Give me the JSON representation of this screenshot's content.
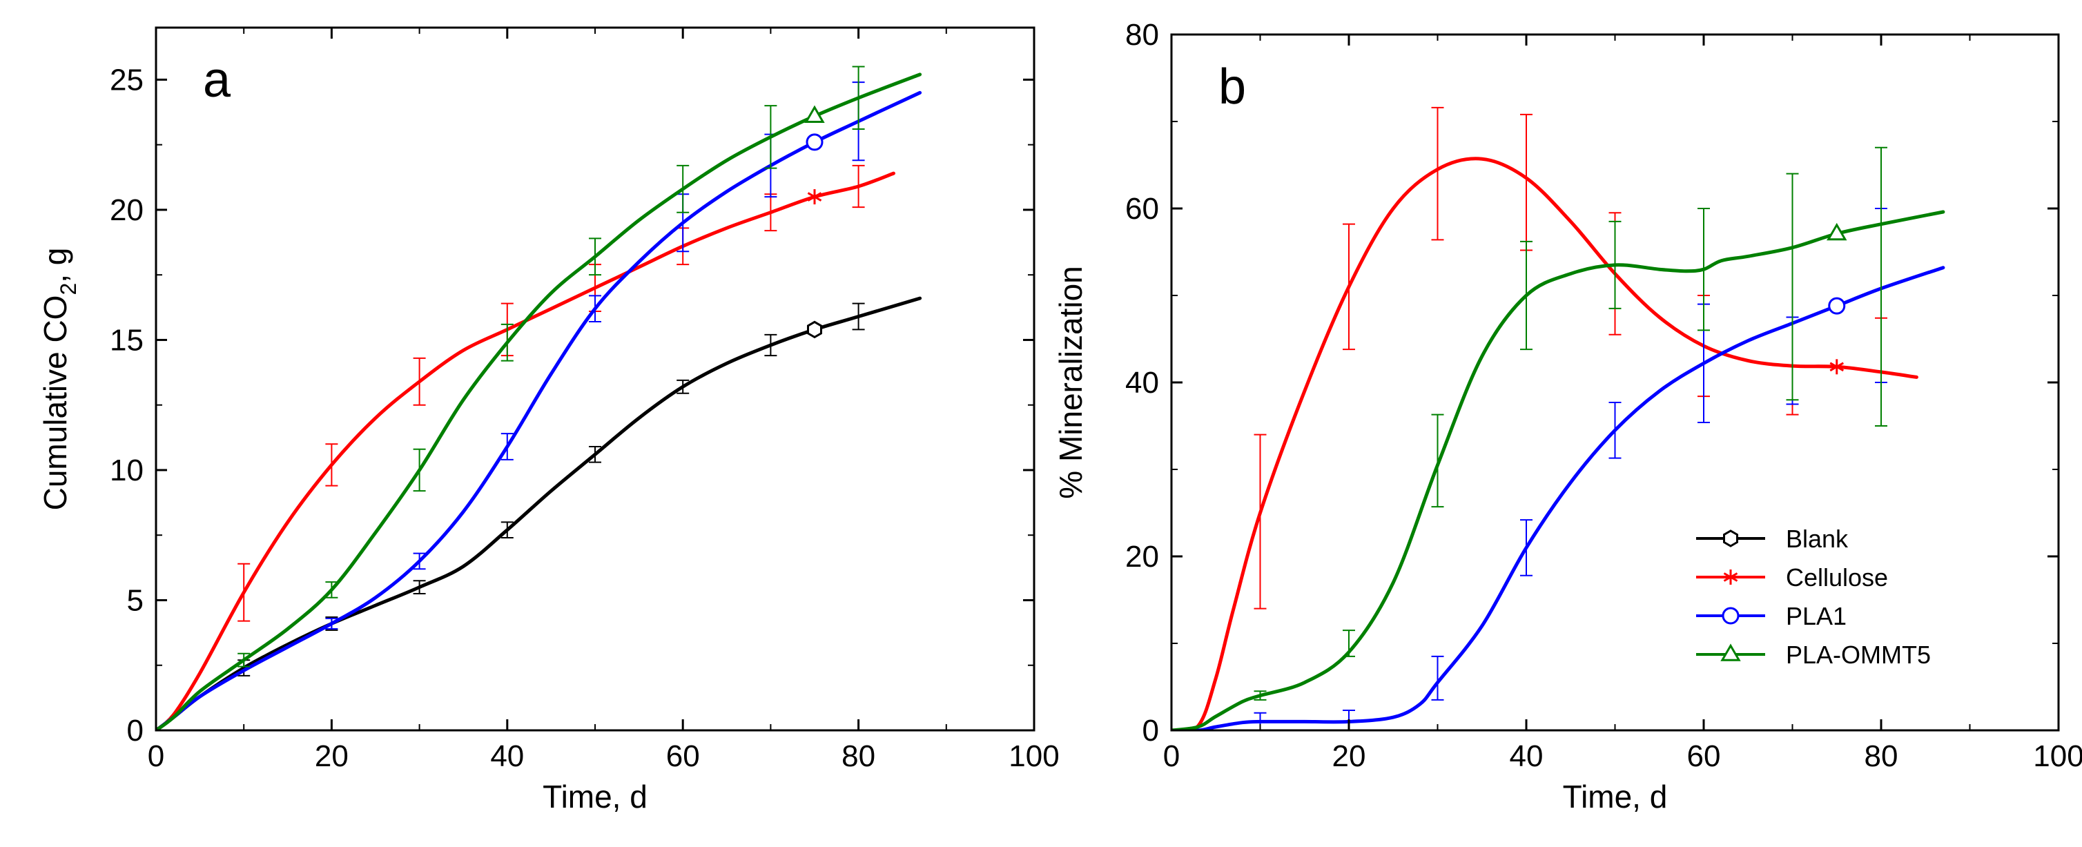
{
  "chart_data": [
    {
      "type": "line",
      "panel_label": "a",
      "xlabel": "Time, d",
      "ylabel": "Cumulative CO",
      "ylabel_sub": "2",
      "ylabel_tail": ", g",
      "xlim": [
        0,
        100
      ],
      "ylim": [
        0,
        27
      ],
      "xticks": [
        0,
        20,
        40,
        60,
        80,
        100
      ],
      "yticks": [
        0,
        5,
        10,
        15,
        20,
        25
      ],
      "grid": false,
      "legend": "none",
      "series": [
        {
          "name": "Blank",
          "color": "#000000",
          "marker": "hexagon",
          "marker_at": [
            75,
            15.4
          ],
          "x": [
            0,
            2,
            5,
            10,
            15,
            20,
            25,
            30,
            35,
            40,
            45,
            50,
            55,
            60,
            65,
            70,
            75,
            80,
            87
          ],
          "y": [
            0,
            0.5,
            1.3,
            2.4,
            3.3,
            4.1,
            4.8,
            5.5,
            6.3,
            7.7,
            9.2,
            10.6,
            12.0,
            13.2,
            14.1,
            14.8,
            15.4,
            15.9,
            16.6
          ],
          "errors": [
            {
              "x": 10,
              "y": 2.4,
              "err": 0.3
            },
            {
              "x": 20,
              "y": 4.1,
              "err": 0.25
            },
            {
              "x": 30,
              "y": 5.5,
              "err": 0.25
            },
            {
              "x": 40,
              "y": 7.7,
              "err": 0.3
            },
            {
              "x": 50,
              "y": 10.6,
              "err": 0.3
            },
            {
              "x": 60,
              "y": 13.2,
              "err": 0.25
            },
            {
              "x": 70,
              "y": 14.8,
              "err": 0.4
            },
            {
              "x": 80,
              "y": 15.9,
              "err": 0.5
            }
          ]
        },
        {
          "name": "Cellulose",
          "color": "#ff0000",
          "marker": "star",
          "marker_at": [
            75,
            20.5
          ],
          "x": [
            0,
            2,
            5,
            10,
            15,
            20,
            25,
            30,
            35,
            40,
            45,
            50,
            55,
            60,
            65,
            70,
            75,
            80,
            84
          ],
          "y": [
            0,
            0.6,
            2.2,
            5.3,
            8.0,
            10.2,
            12.0,
            13.4,
            14.6,
            15.4,
            16.2,
            17.0,
            17.8,
            18.6,
            19.3,
            19.9,
            20.5,
            20.9,
            21.4
          ],
          "errors": [
            {
              "x": 10,
              "y": 5.3,
              "err": 1.1
            },
            {
              "x": 20,
              "y": 10.2,
              "err": 0.8
            },
            {
              "x": 30,
              "y": 13.4,
              "err": 0.9
            },
            {
              "x": 40,
              "y": 15.4,
              "err": 1.0
            },
            {
              "x": 50,
              "y": 17.0,
              "err": 0.9
            },
            {
              "x": 60,
              "y": 18.6,
              "err": 0.7
            },
            {
              "x": 70,
              "y": 19.9,
              "err": 0.7
            },
            {
              "x": 80,
              "y": 20.9,
              "err": 0.8
            }
          ]
        },
        {
          "name": "PLA1",
          "color": "#0000ff",
          "marker": "circle",
          "marker_at": [
            75,
            22.6
          ],
          "x": [
            0,
            2,
            5,
            10,
            15,
            20,
            25,
            30,
            35,
            40,
            45,
            50,
            55,
            60,
            65,
            70,
            75,
            80,
            87
          ],
          "y": [
            0,
            0.5,
            1.3,
            2.3,
            3.2,
            4.1,
            5.1,
            6.5,
            8.4,
            10.9,
            13.7,
            16.2,
            18.0,
            19.5,
            20.7,
            21.7,
            22.6,
            23.4,
            24.5
          ],
          "errors": [
            {
              "x": 20,
              "y": 4.1,
              "err": 0.2
            },
            {
              "x": 30,
              "y": 6.5,
              "err": 0.3
            },
            {
              "x": 40,
              "y": 10.9,
              "err": 0.5
            },
            {
              "x": 50,
              "y": 16.2,
              "err": 0.5
            },
            {
              "x": 60,
              "y": 19.5,
              "err": 1.1
            },
            {
              "x": 70,
              "y": 21.7,
              "err": 1.2
            },
            {
              "x": 80,
              "y": 23.4,
              "err": 1.5
            }
          ]
        },
        {
          "name": "PLA-OMMT5",
          "color": "#008000",
          "marker": "triangle",
          "marker_at": [
            75,
            23.6
          ],
          "x": [
            0,
            2,
            5,
            10,
            15,
            20,
            25,
            30,
            35,
            40,
            45,
            50,
            55,
            60,
            65,
            70,
            75,
            80,
            87
          ],
          "y": [
            0,
            0.5,
            1.5,
            2.7,
            3.9,
            5.4,
            7.6,
            10.0,
            12.7,
            14.9,
            16.8,
            18.2,
            19.6,
            20.8,
            21.9,
            22.8,
            23.6,
            24.3,
            25.2
          ],
          "errors": [
            {
              "x": 10,
              "y": 2.7,
              "err": 0.25
            },
            {
              "x": 20,
              "y": 5.4,
              "err": 0.3
            },
            {
              "x": 30,
              "y": 10.0,
              "err": 0.8
            },
            {
              "x": 40,
              "y": 14.9,
              "err": 0.7
            },
            {
              "x": 50,
              "y": 18.2,
              "err": 0.7
            },
            {
              "x": 60,
              "y": 20.8,
              "err": 0.9
            },
            {
              "x": 70,
              "y": 22.8,
              "err": 1.2
            },
            {
              "x": 80,
              "y": 24.3,
              "err": 1.2
            }
          ]
        }
      ]
    },
    {
      "type": "line",
      "panel_label": "b",
      "xlabel": "Time, d",
      "ylabel": "% Mineralization",
      "xlim": [
        0,
        100
      ],
      "ylim": [
        0,
        80
      ],
      "xticks": [
        0,
        20,
        40,
        60,
        80,
        100
      ],
      "yticks": [
        0,
        20,
        40,
        60,
        80
      ],
      "grid": false,
      "legend": "bottom-right",
      "series": [
        {
          "name": "Blank",
          "color": "#000000",
          "marker": "hexagon",
          "marker_at": null,
          "x": [],
          "y": [],
          "errors": []
        },
        {
          "name": "Cellulose",
          "color": "#ff0000",
          "marker": "star",
          "marker_at": [
            75,
            41.8
          ],
          "x": [
            0,
            3,
            5,
            7,
            10,
            15,
            20,
            25,
            30,
            35,
            40,
            45,
            50,
            55,
            60,
            65,
            70,
            75,
            80,
            84
          ],
          "y": [
            0,
            0.5,
            6,
            14,
            25,
            39,
            51,
            60,
            64.5,
            65.7,
            63.5,
            58.5,
            52.5,
            47.5,
            44.2,
            42.5,
            41.9,
            41.8,
            41.2,
            40.6
          ],
          "errors": [
            {
              "x": 10,
              "y": 24,
              "err": 10
            },
            {
              "x": 20,
              "y": 51,
              "err": 7.2
            },
            {
              "x": 30,
              "y": 64,
              "err": 7.6
            },
            {
              "x": 40,
              "y": 63,
              "err": 7.8
            },
            {
              "x": 50,
              "y": 52.5,
              "err": 7
            },
            {
              "x": 60,
              "y": 44.2,
              "err": 5.8
            },
            {
              "x": 70,
              "y": 41.9,
              "err": 5.6
            },
            {
              "x": 80,
              "y": 41.2,
              "err": 6.2
            }
          ]
        },
        {
          "name": "PLA1",
          "color": "#0000ff",
          "marker": "circle",
          "marker_at": [
            75,
            48.8
          ],
          "x": [
            0,
            3,
            5,
            8,
            10,
            15,
            20,
            25,
            28,
            30,
            35,
            40,
            45,
            50,
            55,
            60,
            65,
            70,
            75,
            80,
            87
          ],
          "y": [
            0,
            0,
            0.4,
            0.9,
            1,
            1,
            1,
            1.5,
            3,
            5.5,
            12,
            21,
            28.5,
            34.5,
            39,
            42.2,
            44.8,
            46.8,
            48.8,
            50.8,
            53.2
          ],
          "errors": [
            {
              "x": 10,
              "y": 1,
              "err": 1
            },
            {
              "x": 20,
              "y": 1,
              "err": 1.3
            },
            {
              "x": 30,
              "y": 6,
              "err": 2.5
            },
            {
              "x": 40,
              "y": 21,
              "err": 3.2
            },
            {
              "x": 50,
              "y": 34.5,
              "err": 3.2
            },
            {
              "x": 60,
              "y": 42.2,
              "err": 6.8
            },
            {
              "x": 70,
              "y": 42.5,
              "err": 5
            },
            {
              "x": 80,
              "y": 50,
              "err": 10
            }
          ]
        },
        {
          "name": "PLA-OMMT5",
          "color": "#008000",
          "marker": "triangle",
          "marker_at": [
            75,
            57.1
          ],
          "x": [
            0,
            3,
            5,
            8,
            10,
            15,
            20,
            25,
            30,
            35,
            40,
            45,
            50,
            55,
            58,
            60,
            62,
            65,
            70,
            75,
            80,
            87
          ],
          "y": [
            0,
            0.4,
            1.6,
            3.3,
            4,
            5.5,
            9,
            17,
            30.5,
            43,
            50,
            52.5,
            53.5,
            53,
            52.8,
            53,
            54,
            54.5,
            55.5,
            57.1,
            58.2,
            59.6
          ],
          "errors": [
            {
              "x": 10,
              "y": 4,
              "err": 0.5
            },
            {
              "x": 20,
              "y": 10,
              "err": 1.5
            },
            {
              "x": 30,
              "y": 31,
              "err": 5.3
            },
            {
              "x": 40,
              "y": 50,
              "err": 6.2
            },
            {
              "x": 50,
              "y": 53.5,
              "err": 5
            },
            {
              "x": 60,
              "y": 53,
              "err": 7
            },
            {
              "x": 70,
              "y": 51,
              "err": 13
            },
            {
              "x": 80,
              "y": 51,
              "err": 16
            }
          ]
        }
      ]
    }
  ]
}
